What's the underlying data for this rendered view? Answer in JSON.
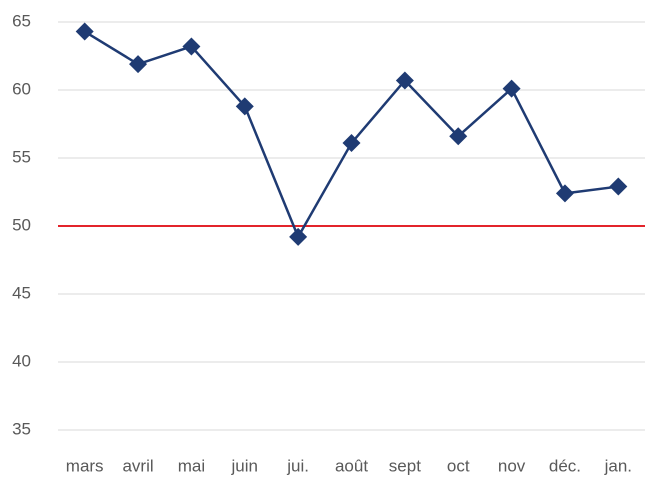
{
  "chart_data": {
    "type": "line",
    "categories": [
      "mars",
      "avril",
      "mai",
      "juin",
      "jui.",
      "août",
      "sept",
      "oct",
      "nov",
      "déc.",
      "jan."
    ],
    "values": [
      64.3,
      61.9,
      63.2,
      58.8,
      49.2,
      56.1,
      60.7,
      56.6,
      60.1,
      52.4,
      52.9
    ],
    "color": "#1f3b73",
    "marker": "diamond",
    "ylim": [
      35,
      65
    ],
    "yticks": [
      35,
      40,
      45,
      50,
      55,
      60,
      65
    ],
    "grid": true,
    "reference_line": {
      "value": 50,
      "color": "#e3242b"
    }
  }
}
